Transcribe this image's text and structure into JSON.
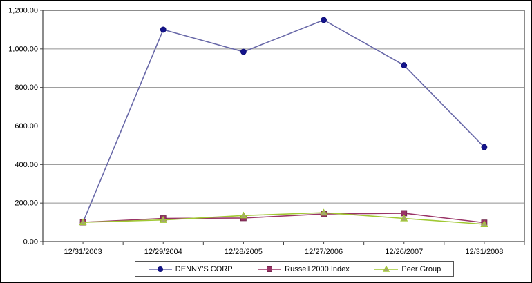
{
  "chart_data": {
    "type": "line",
    "title": "",
    "xlabel": "",
    "ylabel": "",
    "categories": [
      "12/31/2003",
      "12/29/2004",
      "12/28/2005",
      "12/27/2006",
      "12/26/2007",
      "12/31/2008"
    ],
    "series": [
      {
        "name": "DENNY'S CORP",
        "values": [
          100,
          1100,
          985,
          1150,
          915,
          490
        ],
        "line_color": "#6868a8",
        "marker_color": "#14148c",
        "marker_edge": "#0a0a70",
        "marker": "circle"
      },
      {
        "name": "Russell 2000 Index",
        "values": [
          100,
          120,
          122,
          143,
          147,
          98
        ],
        "line_color": "#993366",
        "marker_color": "#993366",
        "marker_edge": "#6e2449",
        "marker": "square"
      },
      {
        "name": "Peer Group",
        "values": [
          100,
          112,
          135,
          150,
          120,
          90
        ],
        "line_color": "#a0c832",
        "marker_color": "#a6a671",
        "marker_edge": "#a0c832",
        "marker": "triangle"
      }
    ],
    "ylim": [
      0,
      1200
    ],
    "y_tick_step": 200,
    "y_tick_labels": [
      "0.00",
      "200.00",
      "400.00",
      "600.00",
      "800.00",
      "1,000.00",
      "1,200.00"
    ],
    "grid": true,
    "legend_position": "bottom",
    "colors": {
      "gridline": "#909090",
      "plot_border": "#404040",
      "axis_text": "#000000",
      "background": "#ffffff"
    }
  }
}
